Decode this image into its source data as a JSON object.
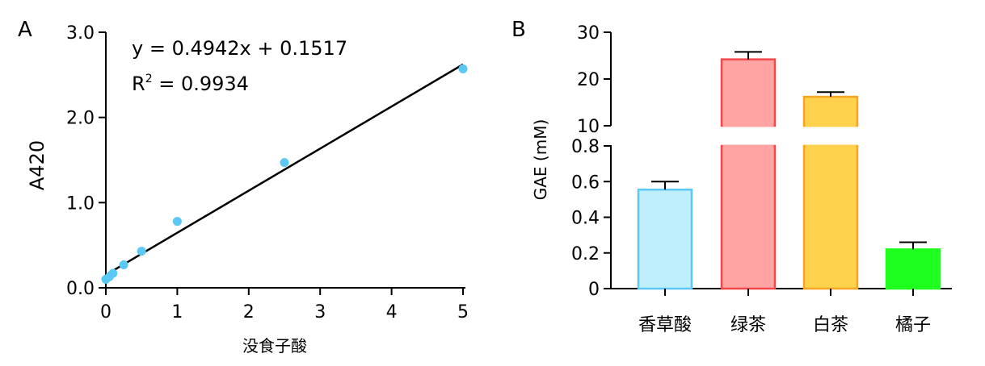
{
  "chart_data": [
    {
      "panel": "A",
      "type": "scatter",
      "xlabel": "没食子酸",
      "ylabel": "A420",
      "xlim": [
        0,
        5
      ],
      "ylim": [
        0,
        3.0
      ],
      "xticks": [
        "0",
        "1",
        "2",
        "3",
        "4",
        "5"
      ],
      "yticks": [
        "0.0",
        "1.0",
        "2.0",
        "3.0"
      ],
      "points": [
        {
          "x": 0.0,
          "y": 0.1
        },
        {
          "x": 0.05,
          "y": 0.13
        },
        {
          "x": 0.1,
          "y": 0.17
        },
        {
          "x": 0.25,
          "y": 0.27
        },
        {
          "x": 0.5,
          "y": 0.43
        },
        {
          "x": 1.0,
          "y": 0.78
        },
        {
          "x": 2.5,
          "y": 1.47
        },
        {
          "x": 5.0,
          "y": 2.57
        }
      ],
      "fit": {
        "slope": 0.4942,
        "intercept": 0.1517
      },
      "equation": "y = 0.4942x + 0.1517",
      "r2_prefix": "R",
      "r2_sup": "2",
      "r2_value": " = 0.9934",
      "point_color": "#5BC8F5"
    },
    {
      "panel": "B",
      "type": "bar",
      "ylabel": "GAE (mM)",
      "axis_break": {
        "lower": [
          0,
          0.8
        ],
        "upper": [
          10,
          30
        ]
      },
      "lower_yticks": [
        "0",
        "0.2",
        "0.4",
        "0.6",
        "0.8"
      ],
      "upper_yticks": [
        "10",
        "20",
        "30"
      ],
      "categories": [
        "香草酸",
        "绿茶",
        "白茶",
        "橘子"
      ],
      "values": [
        0.555,
        24.2,
        16.2,
        0.22
      ],
      "errors": [
        0.045,
        1.6,
        1.0,
        0.04
      ],
      "fill_colors": [
        "#BFEFFC",
        "#FFA3A3",
        "#FFD24D",
        "#1FFF1F"
      ],
      "edge_colors": [
        "#5BC8F5",
        "#F04848",
        "#F5A623",
        "#1FFF1F"
      ]
    }
  ]
}
